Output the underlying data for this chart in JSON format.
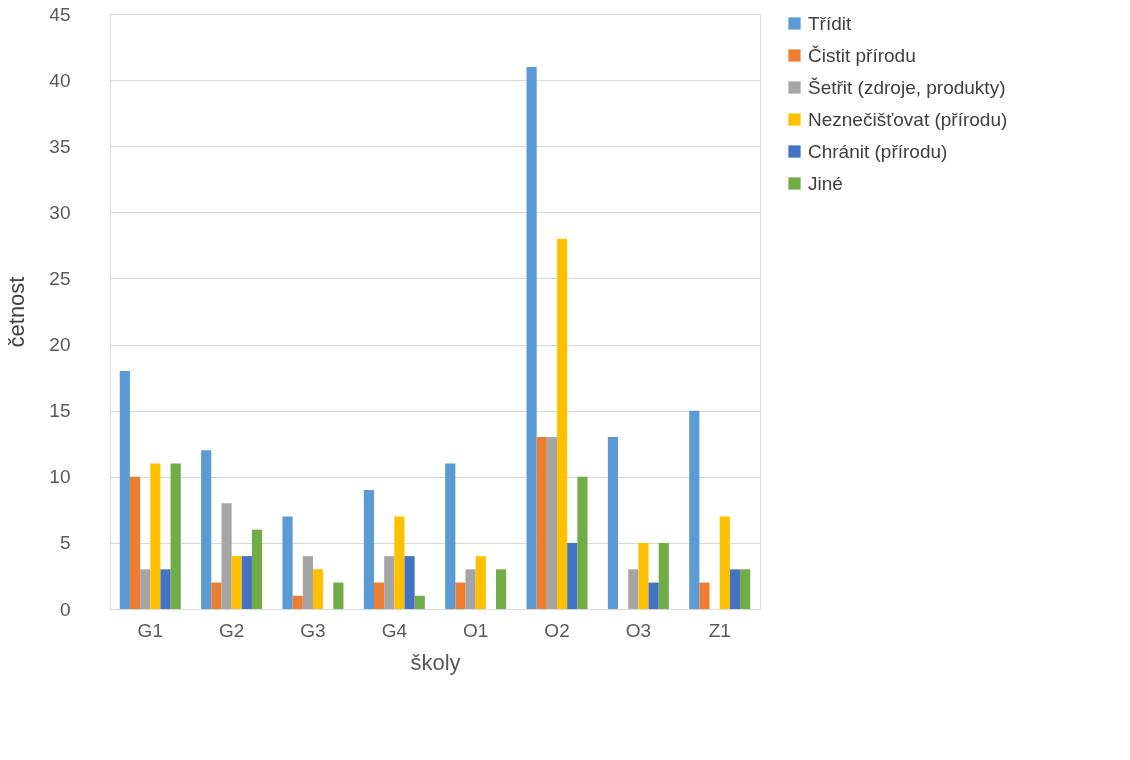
{
  "chart_data": {
    "type": "bar",
    "xlabel": "školy",
    "ylabel": "četnost",
    "categories": [
      "G1",
      "G2",
      "G3",
      "G4",
      "O1",
      "O2",
      "O3",
      "Z1"
    ],
    "series": [
      {
        "name": "Třídit",
        "color": "#5b9bd5",
        "values": [
          18,
          12,
          7,
          9,
          11,
          41,
          13,
          15
        ]
      },
      {
        "name": "Čistit přírodu",
        "color": "#ed7d31",
        "values": [
          10,
          2,
          1,
          2,
          2,
          13,
          0,
          2
        ]
      },
      {
        "name": "Šetřit (zdroje, produkty)",
        "color": "#a5a5a5",
        "values": [
          3,
          8,
          4,
          4,
          3,
          13,
          3,
          0
        ]
      },
      {
        "name": "Neznečišťovat (přírodu)",
        "color": "#ffc000",
        "values": [
          11,
          4,
          3,
          7,
          4,
          28,
          5,
          7
        ]
      },
      {
        "name": "Chránit (přírodu)",
        "color": "#4472c4",
        "values": [
          3,
          4,
          0,
          4,
          0,
          5,
          2,
          3
        ]
      },
      {
        "name": "Jiné",
        "color": "#70ad47",
        "values": [
          11,
          6,
          2,
          1,
          3,
          10,
          5,
          3
        ]
      }
    ],
    "ylim": [
      0,
      45
    ],
    "yticks": [
      0,
      5,
      10,
      15,
      20,
      25,
      30,
      35,
      40,
      45
    ],
    "grid": "y",
    "legend": "right"
  }
}
